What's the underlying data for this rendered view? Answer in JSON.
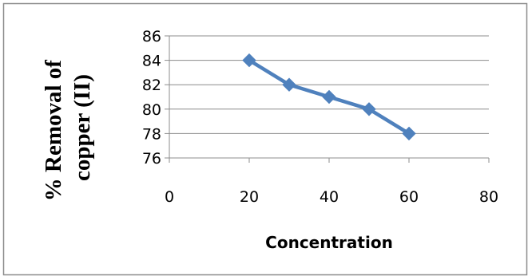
{
  "chart_data": {
    "type": "line",
    "title": "",
    "xlabel": "Concentration",
    "ylabel_lines": [
      "% Removal of",
      "copper (II)"
    ],
    "xlim": [
      0,
      80
    ],
    "ylim": [
      76,
      86
    ],
    "x_ticks": [
      0,
      20,
      40,
      60,
      80
    ],
    "y_ticks": [
      76,
      78,
      80,
      82,
      84,
      86
    ],
    "grid": true,
    "legend": "none",
    "series": [
      {
        "x": [
          20,
          30,
          40,
          50,
          60
        ],
        "y": [
          84,
          82,
          81,
          80,
          78
        ],
        "color": "#4F81BD",
        "marker": "diamond"
      }
    ]
  }
}
